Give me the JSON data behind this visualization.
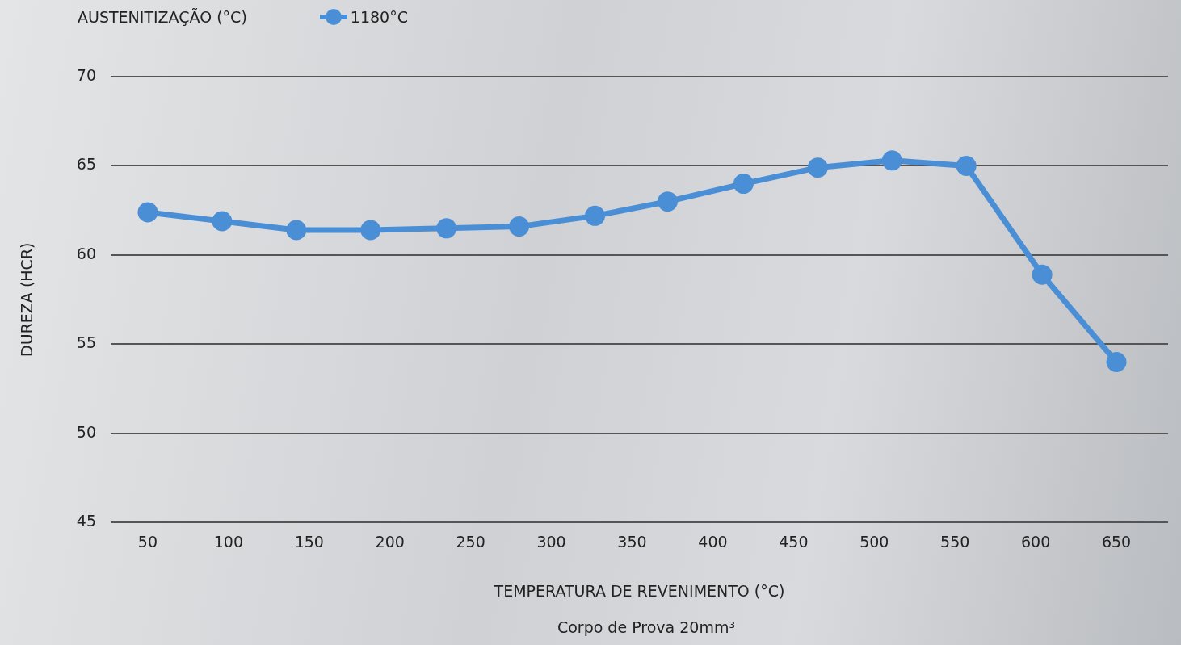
{
  "chart_data": {
    "type": "line",
    "legend_title": "AUSTENITIZAÇÃO (°C)",
    "xlabel": "TEMPERATURA DE REVENIMENTO (°C)",
    "ylabel": "DUREZA (HCR)",
    "annotations": [
      "Corpo de Prova 20mm³"
    ],
    "x": [
      50,
      96,
      142,
      188,
      235,
      280,
      327,
      372,
      419,
      465,
      511,
      557,
      604,
      650
    ],
    "series": [
      {
        "name": "1180°C",
        "color": "#4a8fd6",
        "values": [
          62.4,
          61.9,
          61.4,
          61.4,
          61.5,
          61.6,
          62.2,
          63.0,
          64.0,
          64.9,
          65.3,
          65.0,
          58.9,
          54.0
        ]
      }
    ],
    "xlim": [
      27,
      682
    ],
    "xticks": [
      50,
      100,
      150,
      200,
      250,
      300,
      350,
      400,
      450,
      500,
      550,
      600,
      650
    ],
    "ylim": [
      45,
      70
    ],
    "yticks": [
      45,
      50,
      55,
      60,
      65,
      70
    ],
    "grid": "y",
    "legend": "top left",
    "marker": "circle",
    "line_style": "solid"
  }
}
